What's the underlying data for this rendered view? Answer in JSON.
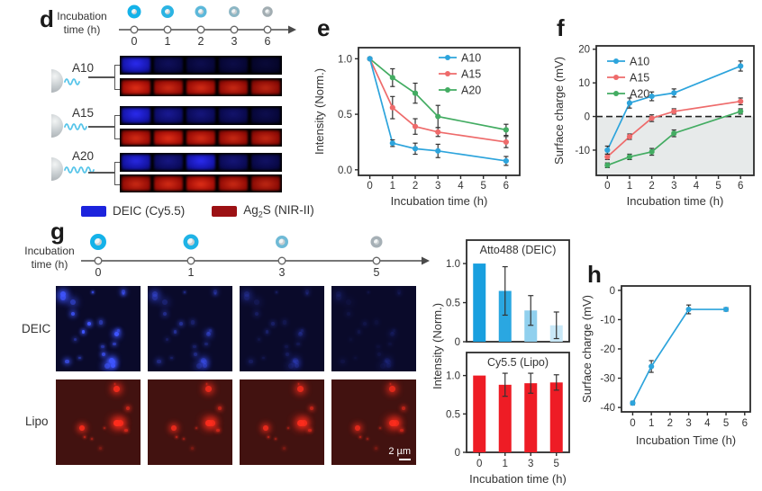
{
  "panels": {
    "d": {
      "label": "d",
      "timeline": {
        "caption1": "Incubation",
        "caption2": "time (h)",
        "ticks": [
          "0",
          "1",
          "2",
          "3",
          "6"
        ],
        "circles": [
          {
            "size": 15,
            "ring": "#14B2E9",
            "ring_w": 4.5
          },
          {
            "size": 14,
            "ring": "#2BB4E3",
            "ring_w": 4
          },
          {
            "size": 13,
            "ring": "#5CB8DA",
            "ring_w": 3.5
          },
          {
            "size": 12,
            "ring": "#8CB6C4",
            "ring_w": 3
          },
          {
            "size": 11.5,
            "ring": "#A2ADB2",
            "ring_w": 3
          }
        ]
      },
      "rows": [
        {
          "name": "A10",
          "wave_cycles": 2,
          "blue_levels": [
            1,
            0.38,
            0.33,
            0.3,
            0.24
          ],
          "red_levels": [
            1,
            0.92,
            0.95,
            0.9,
            0.85
          ]
        },
        {
          "name": "A15",
          "wave_cycles": 3,
          "blue_levels": [
            1,
            0.62,
            0.52,
            0.45,
            0.33
          ],
          "red_levels": [
            0.95,
            1,
            0.95,
            0.9,
            0.88
          ]
        },
        {
          "name": "A20",
          "wave_cycles": 4,
          "blue_levels": [
            0.95,
            0.55,
            1,
            0.5,
            0.42
          ],
          "red_levels": [
            0.9,
            0.95,
            1,
            0.9,
            0.85
          ]
        }
      ],
      "legend": [
        {
          "swatch": "#1C23DD",
          "pre": "DEIC (Cy5.5)",
          "sub": "",
          "post": ""
        },
        {
          "swatch": "#9C1114",
          "pre": "Ag",
          "sub": "2",
          "post": "S (NIR-II)"
        }
      ]
    },
    "e": {
      "label": "e"
    },
    "f": {
      "label": "f"
    },
    "g": {
      "label": "g",
      "timeline": {
        "caption1": "Incubation",
        "caption2": "time (h)",
        "ticks": [
          "0",
          "1",
          "3",
          "5"
        ],
        "circles": [
          {
            "size": 18,
            "ring": "#14B2E9",
            "ring_w": 5
          },
          {
            "size": 17,
            "ring": "#1FB3E6",
            "ring_w": 4.5
          },
          {
            "size": 14,
            "ring": "#6FBAD6",
            "ring_w": 3.5
          },
          {
            "size": 13,
            "ring": "#A6B0B6",
            "ring_w": 3.5
          }
        ]
      },
      "row_labels": [
        "DEIC",
        "Lipo"
      ],
      "scale_bar": "2 µm",
      "images": {
        "deic": {
          "bg": "#0a0a2a",
          "dot_color": "#3f55ff",
          "alpha": [
            1,
            0.5,
            0.28,
            0.14
          ],
          "dots": 24,
          "seed": 7
        },
        "lipo": {
          "bg": "#421210",
          "dot_color": "#ff2d1d",
          "alpha": [
            1,
            0.95,
            0.95,
            0.92
          ],
          "dots": 11,
          "seed": 3
        }
      }
    },
    "h": {
      "label": "h"
    }
  },
  "chart_data": [
    {
      "id": "e",
      "type": "line",
      "xlabel": "Incubation time (h)",
      "ylabel": "Intensity (Norm.)",
      "x": [
        0,
        1,
        2,
        3,
        6
      ],
      "xlim": [
        -0.5,
        6.6
      ],
      "ylim": [
        -0.05,
        1.1
      ],
      "xticks": [
        0,
        1,
        2,
        3,
        4,
        5,
        6
      ],
      "yticks": [
        {
          "v": 0,
          "label": "0.0"
        },
        {
          "v": 0.5,
          "label": "0.5"
        },
        {
          "v": 1,
          "label": "1.0"
        }
      ],
      "legend_pos": "top-right",
      "grid": false,
      "series": [
        {
          "name": "A10",
          "color": "#2DA4DC",
          "y": [
            1.0,
            0.24,
            0.19,
            0.17,
            0.08
          ],
          "err": [
            0,
            0.03,
            0.05,
            0.06,
            0.04
          ]
        },
        {
          "name": "A15",
          "color": "#EE6B6B",
          "y": [
            1.0,
            0.56,
            0.39,
            0.34,
            0.25
          ],
          "err": [
            0,
            0.1,
            0.07,
            0.04,
            0.05
          ]
        },
        {
          "name": "A20",
          "color": "#43AC62",
          "y": [
            1.0,
            0.83,
            0.69,
            0.48,
            0.36
          ],
          "err": [
            0,
            0.08,
            0.09,
            0.1,
            0.05
          ]
        }
      ]
    },
    {
      "id": "f",
      "type": "line",
      "xlabel": "Incubation time (h)",
      "ylabel": "Surface charge (mV)",
      "x": [
        0,
        1,
        2,
        3,
        6
      ],
      "xlim": [
        -0.5,
        6.6
      ],
      "ylim": [
        -17.5,
        21
      ],
      "xticks": [
        0,
        1,
        2,
        3,
        4,
        5,
        6
      ],
      "yticks": [
        {
          "v": -10,
          "label": "-10"
        },
        {
          "v": 0,
          "label": "0"
        },
        {
          "v": 10,
          "label": "10"
        },
        {
          "v": 20,
          "label": "20"
        }
      ],
      "zero_line": true,
      "shade_below_zero": true,
      "legend_pos": "top-left",
      "grid": false,
      "series": [
        {
          "name": "A10",
          "color": "#2DA4DC",
          "y": [
            -10,
            4,
            6,
            7,
            15
          ],
          "err": [
            1.2,
            1.5,
            1.3,
            1.2,
            1.5
          ]
        },
        {
          "name": "A15",
          "color": "#EE6B6B",
          "y": [
            -12,
            -6,
            -0.5,
            1.5,
            4.5
          ],
          "err": [
            0.8,
            0.8,
            1.0,
            0.8,
            1.0
          ]
        },
        {
          "name": "A20",
          "color": "#43AC62",
          "y": [
            -14.5,
            -12,
            -10.5,
            -5,
            1.5
          ],
          "err": [
            0.7,
            0.8,
            1.0,
            1.0,
            0.8
          ]
        }
      ]
    },
    {
      "id": "bar_atto",
      "type": "bar",
      "title": "Atto488 (DEIC)",
      "ylabel": "Intensity (Norm.)",
      "categories": [
        "0",
        "1",
        "3",
        "5"
      ],
      "values": [
        1.0,
        0.65,
        0.4,
        0.21
      ],
      "errors": [
        0,
        0.31,
        0.19,
        0.17
      ],
      "bar_colors": [
        "#189FDF",
        "#2AA7E1",
        "#90D0EE",
        "#C9E8F7"
      ],
      "yticks": [
        {
          "v": 0,
          "label": "0"
        },
        {
          "v": 0.5,
          "label": "0.5"
        },
        {
          "v": 1,
          "label": "1.0"
        }
      ],
      "ylim": [
        0,
        1.3
      ]
    },
    {
      "id": "bar_cy",
      "type": "bar",
      "title": "Cy5.5 (Lipo)",
      "xlabel": "Incubation time (h)",
      "categories": [
        "0",
        "1",
        "3",
        "5"
      ],
      "values": [
        1.0,
        0.88,
        0.9,
        0.91
      ],
      "errors": [
        0,
        0.15,
        0.13,
        0.1
      ],
      "bar_colors": [
        "#EE1C25",
        "#EE1C25",
        "#EE1C25",
        "#EE1C25"
      ],
      "yticks": [
        {
          "v": 0,
          "label": "0"
        },
        {
          "v": 0.5,
          "label": "0.5"
        },
        {
          "v": 1,
          "label": "1.0"
        }
      ],
      "ylim": [
        0,
        1.3
      ]
    },
    {
      "id": "h",
      "type": "line",
      "xlabel": "Incubation Time (h)",
      "ylabel": "Surface charge (mV)",
      "x": [
        0,
        1,
        3,
        5
      ],
      "xlim": [
        -0.6,
        6.3
      ],
      "ylim": [
        -41.5,
        1.5
      ],
      "xticks": [
        0,
        1,
        2,
        3,
        4,
        5,
        6
      ],
      "yticks": [
        {
          "v": 0,
          "label": "0"
        },
        {
          "v": -10,
          "label": "-10"
        },
        {
          "v": -20,
          "label": "-20"
        },
        {
          "v": -30,
          "label": "-30"
        },
        {
          "v": -40,
          "label": "-40"
        }
      ],
      "grid": false,
      "series": [
        {
          "name": "",
          "color": "#2DA4DC",
          "y": [
            -38.5,
            -26,
            -6.5,
            -6.5
          ],
          "err": [
            0.6,
            2.0,
            1.5,
            0.6
          ]
        }
      ]
    }
  ]
}
